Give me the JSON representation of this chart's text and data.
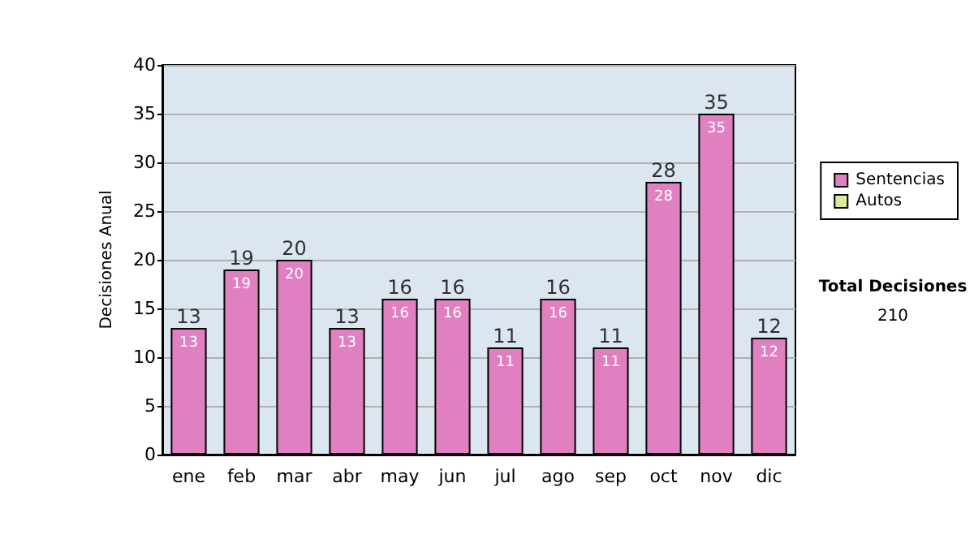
{
  "chart_data": {
    "type": "bar",
    "ylabel": "Decisiones Anual",
    "categories": [
      "ene",
      "feb",
      "mar",
      "abr",
      "may",
      "jun",
      "jul",
      "ago",
      "sep",
      "oct",
      "nov",
      "dic"
    ],
    "series": [
      {
        "name": "Sentencias",
        "color": "#e080c0",
        "values": [
          13,
          19,
          20,
          13,
          16,
          16,
          11,
          16,
          11,
          28,
          35,
          12
        ],
        "value_labels": [
          "13",
          "19",
          "20",
          "13",
          "16",
          "16",
          "11",
          "16",
          "11",
          "28",
          "35",
          "12"
        ]
      },
      {
        "name": "Autos",
        "color": "#d8eca0",
        "values": [
          0,
          0,
          0,
          0,
          0,
          0,
          0,
          0,
          0,
          0,
          0,
          0
        ],
        "value_labels": [
          null,
          null,
          null,
          null,
          null,
          null,
          null,
          null,
          null,
          null,
          null,
          null
        ]
      }
    ],
    "stacked": true,
    "totals": [
      "13",
      "19",
      "20",
      "13",
      "16",
      "16",
      "11",
      "16",
      "11",
      "28",
      "35",
      "12"
    ],
    "ylim": [
      0,
      40
    ],
    "yticks": [
      0,
      5,
      10,
      15,
      20,
      25,
      30,
      35,
      40
    ],
    "grid": "y",
    "legend": "right",
    "annotations": [
      "Total Decisiones",
      "210"
    ]
  }
}
